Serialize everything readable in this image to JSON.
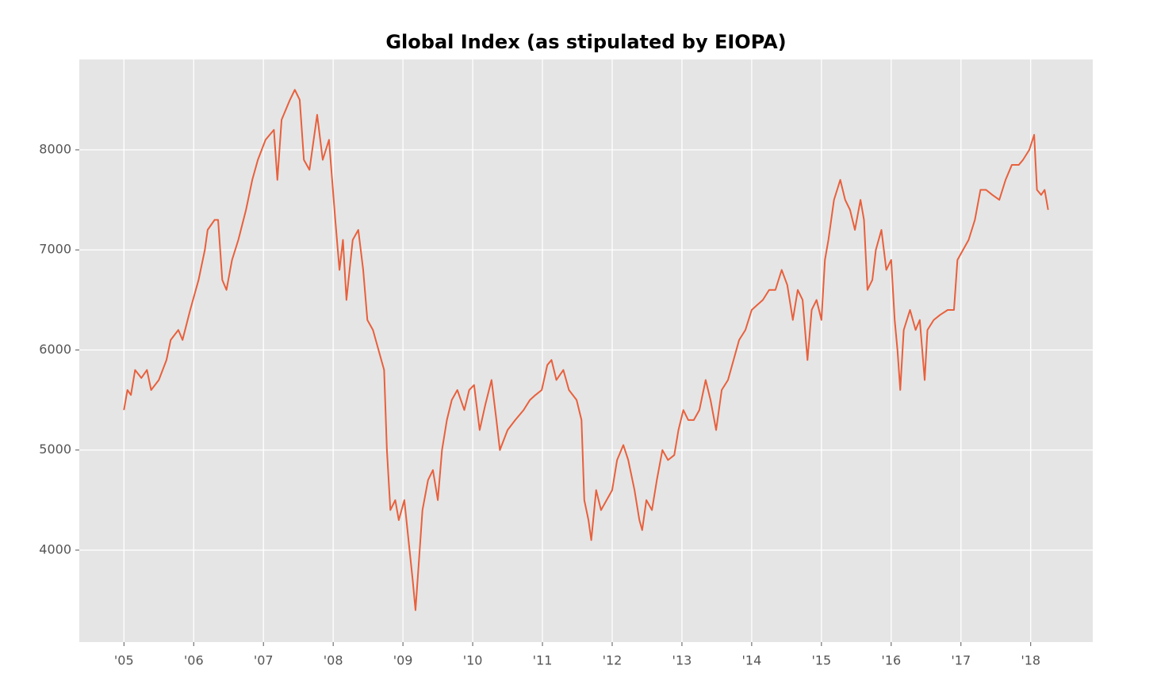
{
  "chart_data": {
    "type": "line",
    "title": "Global Index (as stipulated by EIOPA)",
    "x": [
      2005.0,
      2005.05,
      2005.1,
      2005.16,
      2005.25,
      2005.33,
      2005.39,
      2005.5,
      2005.61,
      2005.67,
      2005.78,
      2005.84,
      2005.95,
      2006.07,
      2006.16,
      2006.2,
      2006.3,
      2006.35,
      2006.41,
      2006.47,
      2006.55,
      2006.64,
      2006.75,
      2006.84,
      2006.92,
      2007.03,
      2007.15,
      2007.2,
      2007.26,
      2007.38,
      2007.45,
      2007.52,
      2007.58,
      2007.66,
      2007.77,
      2007.85,
      2007.94,
      2008.03,
      2008.09,
      2008.14,
      2008.19,
      2008.28,
      2008.36,
      2008.43,
      2008.49,
      2008.57,
      2008.65,
      2008.73,
      2008.77,
      2008.82,
      2008.89,
      2008.94,
      2009.02,
      2009.08,
      2009.14,
      2009.18,
      2009.23,
      2009.28,
      2009.36,
      2009.43,
      2009.5,
      2009.56,
      2009.63,
      2009.7,
      2009.78,
      2009.88,
      2009.95,
      2010.02,
      2010.1,
      2010.18,
      2010.27,
      2010.34,
      2010.39,
      2010.5,
      2010.61,
      2010.73,
      2010.82,
      2010.9,
      2010.99,
      2011.07,
      2011.13,
      2011.2,
      2011.3,
      2011.38,
      2011.49,
      2011.56,
      2011.6,
      2011.66,
      2011.7,
      2011.77,
      2011.84,
      2011.92,
      2012.0,
      2012.07,
      2012.16,
      2012.23,
      2012.32,
      2012.39,
      2012.43,
      2012.49,
      2012.57,
      2012.64,
      2012.72,
      2012.8,
      2012.89,
      2012.95,
      2013.02,
      2013.09,
      2013.17,
      2013.25,
      2013.34,
      2013.41,
      2013.49,
      2013.57,
      2013.66,
      2013.74,
      2013.82,
      2013.91,
      2014.0,
      2014.08,
      2014.16,
      2014.25,
      2014.34,
      2014.43,
      2014.51,
      2014.59,
      2014.66,
      2014.73,
      2014.8,
      2014.86,
      2014.93,
      2015.0,
      2015.05,
      2015.1,
      2015.18,
      2015.27,
      2015.34,
      2015.41,
      2015.48,
      2015.56,
      2015.61,
      2015.66,
      2015.73,
      2015.78,
      2015.86,
      2015.93,
      2016.0,
      2016.05,
      2016.09,
      2016.13,
      2016.18,
      2016.27,
      2016.35,
      2016.41,
      2016.48,
      2016.52,
      2016.61,
      2016.7,
      2016.81,
      2016.9,
      2016.95,
      2017.03,
      2017.11,
      2017.2,
      2017.28,
      2017.36,
      2017.45,
      2017.55,
      2017.64,
      2017.73,
      2017.83,
      2017.89,
      2017.98,
      2018.05,
      2018.09,
      2018.15,
      2018.2,
      2018.25
    ],
    "series": [
      {
        "color": "#e8603c",
        "values": [
          5400,
          5600,
          5550,
          5800,
          5720,
          5800,
          5600,
          5700,
          5900,
          6100,
          6200,
          6100,
          6400,
          6700,
          7000,
          7200,
          7300,
          7300,
          6700,
          6600,
          6900,
          7100,
          7400,
          7700,
          7900,
          8100,
          8200,
          7700,
          8300,
          8500,
          8600,
          8500,
          7900,
          7800,
          8350,
          7900,
          8100,
          7300,
          6800,
          7100,
          6500,
          7100,
          7200,
          6800,
          6300,
          6200,
          6000,
          5800,
          5000,
          4400,
          4500,
          4300,
          4500,
          4100,
          3700,
          3400,
          3900,
          4400,
          4700,
          4800,
          4500,
          5000,
          5300,
          5500,
          5600,
          5400,
          5600,
          5650,
          5200,
          5450,
          5700,
          5300,
          5000,
          5200,
          5300,
          5400,
          5500,
          5550,
          5600,
          5850,
          5900,
          5700,
          5800,
          5600,
          5500,
          5300,
          4500,
          4300,
          4100,
          4600,
          4400,
          4500,
          4600,
          4900,
          5050,
          4900,
          4600,
          4300,
          4200,
          4500,
          4400,
          4700,
          5000,
          4900,
          4950,
          5200,
          5400,
          5300,
          5300,
          5400,
          5700,
          5500,
          5200,
          5600,
          5700,
          5900,
          6100,
          6200,
          6400,
          6450,
          6500,
          6600,
          6600,
          6800,
          6650,
          6300,
          6600,
          6500,
          5900,
          6400,
          6500,
          6300,
          6900,
          7100,
          7500,
          7700,
          7500,
          7400,
          7200,
          7500,
          7300,
          6600,
          6700,
          7000,
          7200,
          6800,
          6900,
          6300,
          6000,
          5600,
          6200,
          6400,
          6200,
          6300,
          5700,
          6200,
          6300,
          6350,
          6400,
          6400,
          6900,
          7000,
          7100,
          7300,
          7600,
          7600,
          7550,
          7500,
          7700,
          7850,
          7850,
          7900,
          8000,
          8150,
          7600,
          7550,
          7600,
          7400
        ]
      }
    ],
    "xlim": [
      2004.36,
      2018.89
    ],
    "ylim": [
      3081,
      8903
    ],
    "xticks": [
      {
        "value": 2005,
        "label": "'05"
      },
      {
        "value": 2006,
        "label": "'06"
      },
      {
        "value": 2007,
        "label": "'07"
      },
      {
        "value": 2008,
        "label": "'08"
      },
      {
        "value": 2009,
        "label": "'09"
      },
      {
        "value": 2010,
        "label": "'10"
      },
      {
        "value": 2011,
        "label": "'11"
      },
      {
        "value": 2012,
        "label": "'12"
      },
      {
        "value": 2013,
        "label": "'13"
      },
      {
        "value": 2014,
        "label": "'14"
      },
      {
        "value": 2015,
        "label": "'15"
      },
      {
        "value": 2016,
        "label": "'16"
      },
      {
        "value": 2017,
        "label": "'17"
      },
      {
        "value": 2018,
        "label": "'18"
      }
    ],
    "yticks": [
      4000,
      5000,
      6000,
      7000,
      8000
    ],
    "grid": true,
    "background": "#e5e5e5"
  }
}
